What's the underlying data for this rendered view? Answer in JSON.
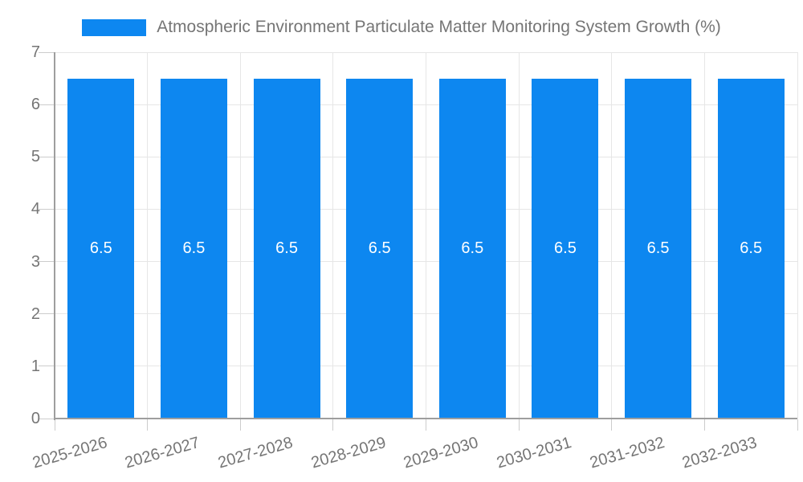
{
  "legend": {
    "label": "Atmospheric Environment Particulate Matter Monitoring System Growth (%)",
    "swatch_color": "#0d87f0"
  },
  "chart_data": {
    "type": "bar",
    "title": "Atmospheric Environment Particulate Matter Monitoring System Growth (%)",
    "series_name": "Atmospheric Environment Particulate Matter Monitoring System Growth (%)",
    "categories": [
      "2025-2026",
      "2026-2027",
      "2027-2028",
      "2028-2029",
      "2029-2030",
      "2030-2031",
      "2031-2032",
      "2032-2033"
    ],
    "values": [
      6.5,
      6.5,
      6.5,
      6.5,
      6.5,
      6.5,
      6.5,
      6.5
    ],
    "bar_labels": [
      "6.5",
      "6.5",
      "6.5",
      "6.5",
      "6.5",
      "6.5",
      "6.5",
      "6.5"
    ],
    "xlabel": "",
    "ylabel": "",
    "ylim": [
      0,
      7
    ],
    "yticks": [
      0,
      1,
      2,
      3,
      4,
      5,
      6,
      7
    ],
    "grid": true,
    "legend_position": "top",
    "x_label_rotation_deg": -16,
    "colors": {
      "bar": "#0d87f0",
      "value_label": "#ffffff",
      "axis_text": "#757575",
      "gridline": "#e6e6e6",
      "axis_line": "#9e9e9e",
      "tick": "#cccccc"
    }
  }
}
